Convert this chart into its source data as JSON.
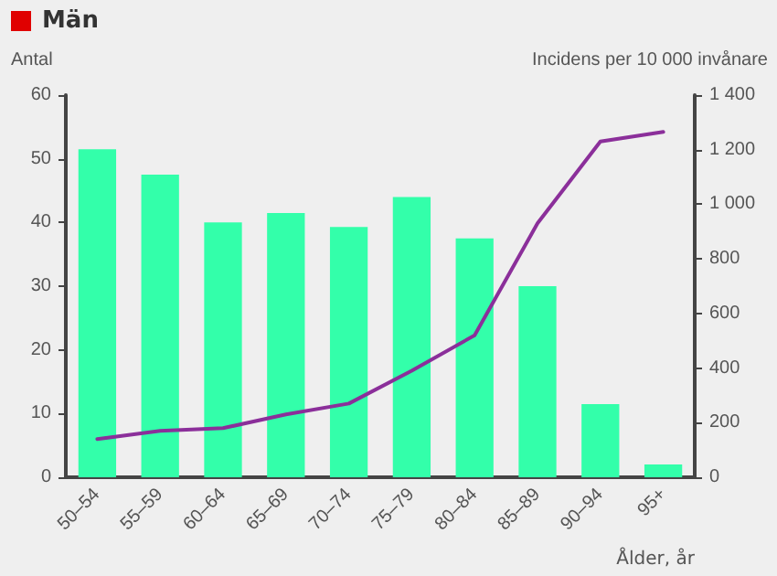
{
  "chart_data": {
    "type": "bar",
    "title": "Män",
    "xlabel": "Ålder, år",
    "ylabel": "Antal",
    "y2label": "Incidens per 10 000 invånare",
    "categories": [
      "50–54",
      "55–59",
      "60–64",
      "65–69",
      "70–74",
      "75–79",
      "80–84",
      "85–89",
      "90–94",
      "95+"
    ],
    "series": [
      {
        "color": "#33ffaa",
        "values": [
          51.5,
          47.5,
          40,
          41.5,
          39.3,
          44,
          37.5,
          30,
          11.5,
          2
        ]
      },
      {
        "type": "line",
        "axis": "y2",
        "color": "#8b2f9a",
        "values": [
          140,
          170,
          180,
          230,
          270,
          390,
          520,
          930,
          1230,
          1265
        ]
      }
    ],
    "ylim": [
      0,
      60
    ],
    "yticks": [
      0,
      10,
      20,
      30,
      40,
      50,
      60
    ],
    "y2lim": [
      0,
      1400
    ],
    "y2ticks": [
      0,
      {
        "value": 200,
        "label": "200"
      },
      {
        "value": 400,
        "label": "400"
      },
      {
        "value": 600,
        "label": "600"
      },
      {
        "value": 800,
        "label": "800"
      },
      {
        "value": 1000,
        "label": "1 000"
      },
      {
        "value": 1200,
        "label": "1 200"
      },
      {
        "value": 1400,
        "label": "1 400"
      }
    ],
    "grid": false,
    "marker": "none",
    "line_style": "solid"
  }
}
